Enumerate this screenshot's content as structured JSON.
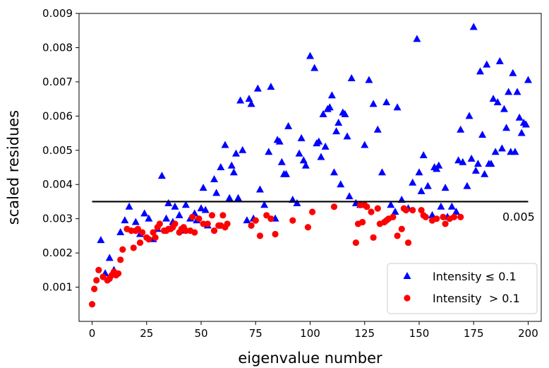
{
  "chart_data": {
    "type": "scatter",
    "xlabel": "eigenvalue number",
    "ylabel": "scaled residues",
    "xlim": [
      -6,
      206
    ],
    "ylim": [
      0.0,
      0.009
    ],
    "xticks": [
      0,
      25,
      50,
      75,
      100,
      125,
      150,
      175,
      200
    ],
    "yticks": [
      0.001,
      0.002,
      0.003,
      0.004,
      0.005,
      0.006,
      0.007,
      0.008,
      0.009
    ],
    "grid": false,
    "legend_position": "bottom-right",
    "series": [
      {
        "name": "Intensity ≤ 0.1",
        "marker": "triangle",
        "color": "#0000ff",
        "points": [
          [
            4,
            0.00237
          ],
          [
            6,
            0.0014
          ],
          [
            8,
            0.00185
          ],
          [
            10,
            0.0015
          ],
          [
            13,
            0.0026
          ],
          [
            15,
            0.00295
          ],
          [
            17,
            0.00335
          ],
          [
            20,
            0.0029
          ],
          [
            22,
            0.00255
          ],
          [
            24,
            0.00315
          ],
          [
            26,
            0.003
          ],
          [
            28,
            0.0024
          ],
          [
            30,
            0.0027
          ],
          [
            32,
            0.00425
          ],
          [
            34,
            0.003
          ],
          [
            35,
            0.00345
          ],
          [
            37,
            0.0029
          ],
          [
            38,
            0.00335
          ],
          [
            40,
            0.0031
          ],
          [
            42,
            0.00265
          ],
          [
            43,
            0.0034
          ],
          [
            45,
            0.003
          ],
          [
            47,
            0.00315
          ],
          [
            48,
            0.00295
          ],
          [
            50,
            0.0033
          ],
          [
            51,
            0.0039
          ],
          [
            52,
            0.00325
          ],
          [
            53,
            0.0028
          ],
          [
            56,
            0.00415
          ],
          [
            57,
            0.00375
          ],
          [
            59,
            0.0045
          ],
          [
            61,
            0.00515
          ],
          [
            63,
            0.0036
          ],
          [
            64,
            0.00455
          ],
          [
            65,
            0.00435
          ],
          [
            66,
            0.0049
          ],
          [
            67,
            0.0036
          ],
          [
            68,
            0.00645
          ],
          [
            69,
            0.005
          ],
          [
            71,
            0.00295
          ],
          [
            72,
            0.0065
          ],
          [
            73,
            0.00635
          ],
          [
            74,
            0.003
          ],
          [
            76,
            0.0068
          ],
          [
            77,
            0.00385
          ],
          [
            79,
            0.0034
          ],
          [
            81,
            0.00495
          ],
          [
            82,
            0.00685
          ],
          [
            84,
            0.003
          ],
          [
            85,
            0.0053
          ],
          [
            86,
            0.00525
          ],
          [
            87,
            0.00465
          ],
          [
            88,
            0.0043
          ],
          [
            89,
            0.0043
          ],
          [
            90,
            0.0057
          ],
          [
            92,
            0.00355
          ],
          [
            94,
            0.00345
          ],
          [
            95,
            0.0049
          ],
          [
            96,
            0.00535
          ],
          [
            97,
            0.0047
          ],
          [
            98,
            0.00455
          ],
          [
            100,
            0.00775
          ],
          [
            102,
            0.0074
          ],
          [
            103,
            0.0052
          ],
          [
            104,
            0.00525
          ],
          [
            105,
            0.0048
          ],
          [
            106,
            0.00605
          ],
          [
            107,
            0.0051
          ],
          [
            108,
            0.0062
          ],
          [
            109,
            0.00625
          ],
          [
            110,
            0.0066
          ],
          [
            111,
            0.00435
          ],
          [
            112,
            0.00555
          ],
          [
            113,
            0.0058
          ],
          [
            114,
            0.004
          ],
          [
            115,
            0.0061
          ],
          [
            116,
            0.00605
          ],
          [
            117,
            0.0054
          ],
          [
            118,
            0.00365
          ],
          [
            119,
            0.0071
          ],
          [
            121,
            0.00345
          ],
          [
            123,
            0.0034
          ],
          [
            125,
            0.00515
          ],
          [
            127,
            0.00705
          ],
          [
            129,
            0.00635
          ],
          [
            131,
            0.0056
          ],
          [
            133,
            0.00435
          ],
          [
            135,
            0.0064
          ],
          [
            137,
            0.0034
          ],
          [
            139,
            0.0032
          ],
          [
            140,
            0.00625
          ],
          [
            142,
            0.00355
          ],
          [
            145,
            0.0033
          ],
          [
            147,
            0.00405
          ],
          [
            149,
            0.00825
          ],
          [
            150,
            0.00435
          ],
          [
            151,
            0.0038
          ],
          [
            152,
            0.00485
          ],
          [
            154,
            0.00395
          ],
          [
            156,
            0.0031
          ],
          [
            157,
            0.0045
          ],
          [
            158,
            0.00445
          ],
          [
            159,
            0.00455
          ],
          [
            160,
            0.00335
          ],
          [
            162,
            0.0039
          ],
          [
            163,
            0.00305
          ],
          [
            165,
            0.00335
          ],
          [
            167,
            0.0032
          ],
          [
            168,
            0.0047
          ],
          [
            169,
            0.0056
          ],
          [
            170,
            0.00465
          ],
          [
            172,
            0.00395
          ],
          [
            173,
            0.006
          ],
          [
            174,
            0.00475
          ],
          [
            175,
            0.0086
          ],
          [
            176,
            0.0044
          ],
          [
            177,
            0.0046
          ],
          [
            178,
            0.0073
          ],
          [
            179,
            0.00545
          ],
          [
            180,
            0.0043
          ],
          [
            181,
            0.0075
          ],
          [
            182,
            0.0046
          ],
          [
            183,
            0.0046
          ],
          [
            184,
            0.0065
          ],
          [
            185,
            0.00495
          ],
          [
            186,
            0.0064
          ],
          [
            187,
            0.0076
          ],
          [
            188,
            0.00505
          ],
          [
            189,
            0.0062
          ],
          [
            190,
            0.00565
          ],
          [
            191,
            0.0067
          ],
          [
            192,
            0.00495
          ],
          [
            193,
            0.00725
          ],
          [
            194,
            0.00495
          ],
          [
            195,
            0.0067
          ],
          [
            196,
            0.00595
          ],
          [
            197,
            0.0055
          ],
          [
            198,
            0.0058
          ],
          [
            199,
            0.00575
          ],
          [
            200,
            0.00705
          ]
        ]
      },
      {
        "name": "Intensity  > 0.1",
        "marker": "circle",
        "color": "#ff0000",
        "points": [
          [
            0,
            0.0005
          ],
          [
            1,
            0.00095
          ],
          [
            2,
            0.0012
          ],
          [
            3,
            0.0015
          ],
          [
            5,
            0.0013
          ],
          [
            7,
            0.0012
          ],
          [
            8,
            0.00125
          ],
          [
            9,
            0.00135
          ],
          [
            10,
            0.00145
          ],
          [
            11,
            0.00135
          ],
          [
            12,
            0.0014
          ],
          [
            13,
            0.0018
          ],
          [
            14,
            0.0021
          ],
          [
            16,
            0.0027
          ],
          [
            18,
            0.00265
          ],
          [
            19,
            0.00215
          ],
          [
            20,
            0.00265
          ],
          [
            21,
            0.0027
          ],
          [
            22,
            0.0023
          ],
          [
            23,
            0.0026
          ],
          [
            25,
            0.00245
          ],
          [
            26,
            0.0024
          ],
          [
            28,
            0.0026
          ],
          [
            29,
            0.00245
          ],
          [
            30,
            0.00275
          ],
          [
            31,
            0.00285
          ],
          [
            33,
            0.00265
          ],
          [
            34,
            0.00265
          ],
          [
            35,
            0.0027
          ],
          [
            36,
            0.0027
          ],
          [
            37,
            0.00275
          ],
          [
            38,
            0.00285
          ],
          [
            40,
            0.0026
          ],
          [
            41,
            0.0027
          ],
          [
            42,
            0.00275
          ],
          [
            43,
            0.00265
          ],
          [
            45,
            0.00265
          ],
          [
            46,
            0.00305
          ],
          [
            47,
            0.0026
          ],
          [
            49,
            0.003
          ],
          [
            51,
            0.00285
          ],
          [
            53,
            0.00285
          ],
          [
            55,
            0.0031
          ],
          [
            56,
            0.00265
          ],
          [
            58,
            0.0028
          ],
          [
            59,
            0.0028
          ],
          [
            60,
            0.0031
          ],
          [
            61,
            0.00275
          ],
          [
            62,
            0.00285
          ],
          [
            73,
            0.0028
          ],
          [
            75,
            0.00295
          ],
          [
            77,
            0.0025
          ],
          [
            80,
            0.0031
          ],
          [
            82,
            0.003
          ],
          [
            84,
            0.00255
          ],
          [
            92,
            0.00295
          ],
          [
            99,
            0.00275
          ],
          [
            101,
            0.0032
          ],
          [
            111,
            0.00335
          ],
          [
            121,
            0.0023
          ],
          [
            122,
            0.00285
          ],
          [
            123,
            0.0034
          ],
          [
            124,
            0.0029
          ],
          [
            125,
            0.0034
          ],
          [
            126,
            0.00335
          ],
          [
            128,
            0.0032
          ],
          [
            129,
            0.00245
          ],
          [
            131,
            0.0033
          ],
          [
            132,
            0.00285
          ],
          [
            134,
            0.0029
          ],
          [
            135,
            0.00295
          ],
          [
            136,
            0.003
          ],
          [
            138,
            0.00305
          ],
          [
            140,
            0.0025
          ],
          [
            142,
            0.0027
          ],
          [
            143,
            0.0033
          ],
          [
            144,
            0.00325
          ],
          [
            145,
            0.0023
          ],
          [
            147,
            0.00325
          ],
          [
            151,
            0.00325
          ],
          [
            152,
            0.0031
          ],
          [
            153,
            0.00305
          ],
          [
            156,
            0.00295
          ],
          [
            158,
            0.003
          ],
          [
            161,
            0.00305
          ],
          [
            162,
            0.00285
          ],
          [
            164,
            0.003
          ],
          [
            166,
            0.00305
          ],
          [
            169,
            0.00305
          ]
        ]
      }
    ],
    "hline": {
      "y": 0.0035,
      "xmin": 0,
      "xmax": 200,
      "label": "0.005",
      "color": "#000000"
    }
  }
}
